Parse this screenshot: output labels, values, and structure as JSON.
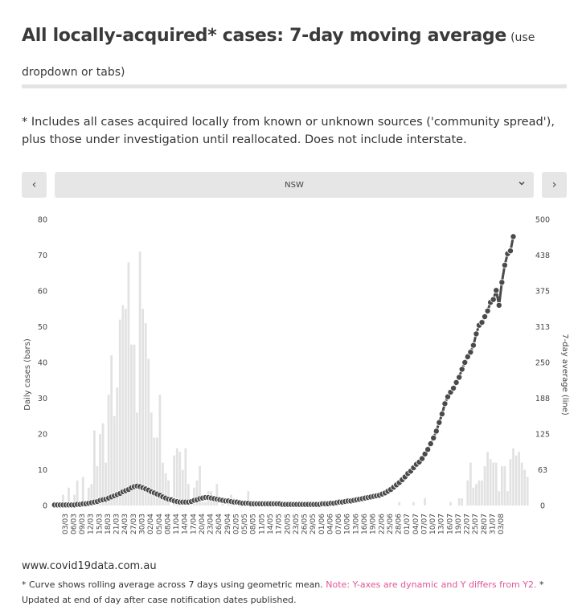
{
  "header": {
    "title": "All locally-acquired* cases: 7-day moving average",
    "title_hint": "(use dropdown or tabs)"
  },
  "note": "* Includes all cases acquired locally from known or unknown sources ('community spread'), plus those under investigation until reallocated. Does not include interstate.",
  "controls": {
    "prev_icon": "‹",
    "next_icon": "›",
    "selected_region": "NSW",
    "dropdown_icon": "chevron-down-icon"
  },
  "colors": {
    "bars": "#e2e2e2",
    "line": "#4a4a4a",
    "note_pink": "#e0559a"
  },
  "chart_data": {
    "type": "bar",
    "title": "",
    "ylabel": "Daily cases (bars)",
    "y2label": "7-day average (line)",
    "ylim": [
      0,
      80
    ],
    "y2lim": [
      0,
      500
    ],
    "y_ticks": [
      "0",
      "10",
      "20",
      "30",
      "40",
      "50",
      "60",
      "70",
      "80"
    ],
    "y2_ticks": [
      "0",
      "63",
      "125",
      "188",
      "250",
      "313",
      "375",
      "438",
      "500"
    ],
    "x_tick_labels": [
      "03/03",
      "06/03",
      "09/03",
      "12/03",
      "15/03",
      "18/03",
      "21/03",
      "24/03",
      "27/03",
      "30/03",
      "02/04",
      "05/04",
      "08/04",
      "11/04",
      "14/04",
      "17/04",
      "20/04",
      "23/04",
      "26/04",
      "29/04",
      "02/05",
      "05/05",
      "08/05",
      "11/05",
      "14/05",
      "17/05",
      "20/05",
      "23/05",
      "26/05",
      "29/05",
      "01/06",
      "04/06",
      "07/06",
      "10/06",
      "13/06",
      "16/06",
      "19/06",
      "22/06",
      "25/06",
      "28/06",
      "01/07",
      "04/07",
      "07/07",
      "10/07",
      "13/07",
      "16/07",
      "19/07",
      "22/07",
      "25/07",
      "28/07",
      "31/07",
      "03/08"
    ],
    "series": [
      {
        "name": "Daily cases (bars)",
        "axis": "left",
        "values": [
          0,
          1,
          0,
          3,
          1,
          5,
          1,
          3,
          7,
          1,
          8,
          1,
          5,
          6,
          21,
          11,
          20,
          23,
          12,
          31,
          42,
          25,
          33,
          52,
          56,
          55,
          68,
          45,
          45,
          26,
          71,
          55,
          51,
          41,
          26,
          19,
          19,
          31,
          12,
          9,
          7,
          0,
          14,
          16,
          15,
          10,
          16,
          6,
          1,
          5,
          7,
          11,
          1,
          1,
          4,
          4,
          2,
          6,
          0,
          1,
          0,
          1,
          3,
          2,
          1,
          1,
          0,
          0,
          4,
          0,
          0,
          1,
          0,
          0,
          0,
          0,
          1,
          0,
          0,
          0,
          0,
          0,
          0,
          0,
          0,
          0,
          0,
          0,
          0,
          0,
          0,
          0,
          0,
          0,
          0,
          0,
          1,
          0,
          0,
          0,
          0,
          0,
          0,
          0,
          0,
          0,
          0,
          0,
          0,
          0,
          0,
          0,
          0,
          0,
          0,
          0,
          0,
          0,
          0,
          0,
          0,
          1,
          0,
          0,
          0,
          0,
          1,
          0,
          0,
          0,
          2,
          0,
          0,
          0,
          0,
          0,
          0,
          0,
          0,
          1,
          0,
          0,
          2,
          2,
          0,
          7,
          12,
          5,
          6,
          7,
          7,
          11,
          15,
          13,
          12,
          12,
          4,
          11,
          11,
          4,
          13,
          16,
          14,
          15,
          12,
          10,
          8
        ]
      },
      {
        "name": "7-day average (line)",
        "axis": "right",
        "values": [
          1,
          1,
          1,
          1,
          1,
          1,
          1,
          1,
          2,
          2,
          3,
          3,
          4,
          5,
          6,
          7,
          9,
          10,
          11,
          13,
          15,
          17,
          19,
          21,
          24,
          26,
          28,
          31,
          33,
          34,
          33,
          31,
          29,
          27,
          24,
          22,
          20,
          18,
          15,
          13,
          11,
          10,
          8,
          7,
          6,
          6,
          6,
          6,
          7,
          9,
          10,
          12,
          13,
          14,
          14,
          13,
          12,
          11,
          10,
          9,
          8,
          8,
          7,
          6,
          6,
          5,
          4,
          4,
          4,
          3,
          3,
          3,
          3,
          3,
          3,
          3,
          3,
          3,
          3,
          3,
          2,
          2,
          2,
          2,
          2,
          2,
          2,
          2,
          2,
          2,
          2,
          2,
          2,
          2,
          3,
          3,
          3,
          4,
          4,
          5,
          6,
          6,
          7,
          8,
          8,
          9,
          10,
          11,
          12,
          13,
          14,
          15,
          16,
          17,
          18,
          20,
          22,
          25,
          28,
          32,
          36,
          40,
          45,
          50,
          56,
          60,
          66,
          72,
          76,
          82,
          90,
          98,
          108,
          118,
          130,
          145,
          160,
          178,
          190,
          198,
          205,
          215,
          224,
          238,
          250,
          260,
          268,
          280,
          300,
          315,
          320,
          330,
          340,
          355,
          360,
          376,
          350,
          390,
          420,
          440,
          445,
          470
        ]
      }
    ]
  },
  "footer": {
    "site": "www.covid19data.com.au",
    "note_start": "* Curve shows rolling average across 7 days using geometric mean. ",
    "note_pink": "Note: Y-axes are dynamic and Y differs from Y2.",
    "note_end": " * Updated at end of day after case notification dates published."
  }
}
